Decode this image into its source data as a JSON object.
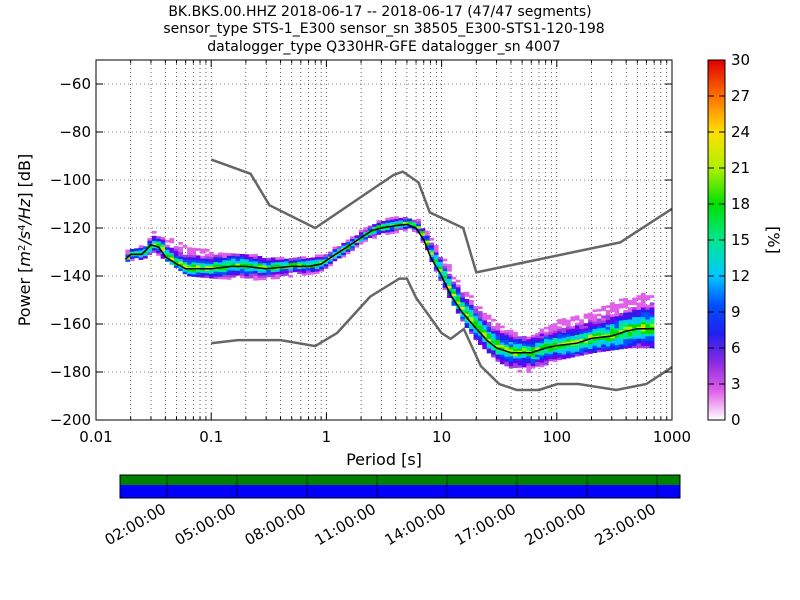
{
  "title_lines": [
    "BK.BKS.00.HHZ   2018-06-17 -- 2018-06-17  (47/47 segments)",
    "sensor_type STS-1_E300 sensor_sn 38505_E300-STS1-120-198",
    "datalogger_type Q330HR-GFE datalogger_sn 4007"
  ],
  "chart_data": {
    "type": "heatmap",
    "xlabel": "Period [s]",
    "ylabel": "Power [m²/s⁴/Hz] [dB]",
    "x_scale": "log",
    "xlim": [
      0.01,
      1000
    ],
    "ylim": [
      -200,
      -50
    ],
    "x_ticks": [
      0.01,
      0.1,
      1,
      10,
      100,
      1000
    ],
    "x_tick_labels": [
      "0.01",
      "0.1",
      "1",
      "10",
      "100",
      "1000"
    ],
    "y_ticks": [
      -200,
      -180,
      -160,
      -140,
      -120,
      -100,
      -80,
      -60
    ],
    "y_tick_labels": [
      "−200",
      "−180",
      "−160",
      "−140",
      "−120",
      "−100",
      "−80",
      "−60"
    ],
    "grid": true,
    "colorbar": {
      "label": "[%]",
      "range": [
        0,
        30
      ],
      "ticks": [
        0,
        3,
        6,
        9,
        12,
        15,
        18,
        21,
        24,
        27,
        30
      ],
      "tick_labels": [
        "0",
        "3",
        "6",
        "9",
        "12",
        "15",
        "18",
        "21",
        "24",
        "27",
        "30"
      ]
    },
    "series": [
      {
        "role": "high-noise-model",
        "color": "#666666",
        "x": [
          0.1,
          0.22,
          0.32,
          0.8,
          3.8,
          4.6,
          6.3,
          7.9,
          15.4,
          20,
          354.8,
          1000
        ],
        "y": [
          -91.5,
          -97.4,
          -110.5,
          -120,
          -98,
          -96.5,
          -101,
          -113.5,
          -120,
          -138.5,
          -126,
          -112
        ]
      },
      {
        "role": "low-noise-model",
        "color": "#666666",
        "x": [
          0.1,
          0.17,
          0.4,
          0.8,
          1.24,
          2.4,
          4.3,
          5,
          6,
          10,
          12,
          15.6,
          21.9,
          31.6,
          45,
          70,
          101,
          154,
          328,
          600,
          1000
        ],
        "y": [
          -168,
          -166.7,
          -166.7,
          -169.2,
          -163.7,
          -148.6,
          -141.1,
          -141.1,
          -149,
          -163.8,
          -166.2,
          -162.1,
          -177.5,
          -185,
          -187.5,
          -187.5,
          -185,
          -185,
          -187.5,
          -185,
          -178
        ]
      },
      {
        "role": "mode",
        "color": "#000000",
        "x": [
          0.018,
          0.02,
          0.025,
          0.03,
          0.035,
          0.04,
          0.05,
          0.06,
          0.08,
          0.1,
          0.15,
          0.2,
          0.3,
          0.5,
          0.7,
          0.9,
          1.2,
          1.5,
          2,
          2.5,
          3,
          4,
          5,
          6,
          7,
          8,
          10,
          12,
          15,
          20,
          25,
          30,
          40,
          50,
          60,
          80,
          100,
          150,
          200,
          300,
          400,
          500,
          700
        ],
        "y": [
          -133,
          -131,
          -131,
          -127,
          -128,
          -132,
          -135,
          -137,
          -137,
          -137,
          -136,
          -136,
          -137,
          -136,
          -136,
          -135,
          -131,
          -128,
          -124,
          -121,
          -120,
          -119,
          -118.5,
          -120,
          -125,
          -132,
          -140,
          -148,
          -155,
          -162,
          -167,
          -170,
          -172,
          -172,
          -172,
          -170,
          -169,
          -168,
          -166,
          -165,
          -163,
          -162,
          -162
        ]
      }
    ],
    "heatmap_band": {
      "x": [
        0.018,
        0.025,
        0.03,
        0.04,
        0.06,
        0.1,
        0.2,
        0.4,
        0.8,
        1.2,
        2,
        3,
        4,
        5,
        6,
        8,
        10,
        15,
        20,
        30,
        50,
        70,
        100,
        200,
        400,
        700
      ],
      "y_low": [
        -134,
        -133,
        -130,
        -134,
        -140,
        -141,
        -142,
        -141,
        -139,
        -134,
        -126,
        -123,
        -122,
        -121,
        -122,
        -135,
        -145,
        -160,
        -168,
        -176,
        -181,
        -178,
        -175,
        -172,
        -170,
        -170
      ],
      "y_high": [
        -129,
        -127,
        -122,
        -124,
        -128,
        -130,
        -131,
        -133,
        -132,
        -128,
        -121,
        -116,
        -116,
        -116,
        -117,
        -125,
        -133,
        -144,
        -152,
        -160,
        -166,
        -163,
        -159,
        -155,
        -149,
        -147
      ]
    }
  },
  "time_bar": {
    "tick_labels": [
      "02:00:00",
      "05:00:00",
      "08:00:00",
      "11:00:00",
      "14:00:00",
      "17:00:00",
      "20:00:00",
      "23:00:00"
    ],
    "top_color": "#008000",
    "bottom_color": "#0000ff"
  }
}
